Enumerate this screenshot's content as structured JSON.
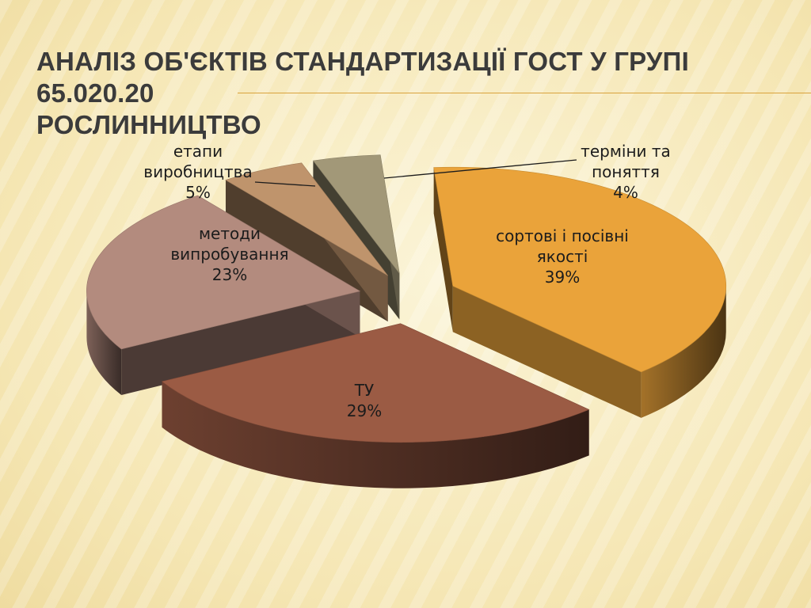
{
  "slide": {
    "title_line1": "Аналіз об'єктів стандартизації ГОСТ у групі 65.020.20",
    "title_line2": "Рослинництво"
  },
  "chart_data": {
    "type": "pie",
    "title": "",
    "legend": "none",
    "slices": [
      {
        "label": [
          "сортові і посівні",
          "якості"
        ],
        "value": 39,
        "pct_text": "39%",
        "color": "#eaa33a",
        "exploded": true
      },
      {
        "label": [
          "ТУ"
        ],
        "value": 29,
        "pct_text": "29%",
        "color": "#9b5b44",
        "exploded": true
      },
      {
        "label": [
          "методи",
          "випробування"
        ],
        "value": 23,
        "pct_text": "23%",
        "color": "#b38b7e",
        "exploded": true
      },
      {
        "label": [
          "етапи",
          "виробництва"
        ],
        "value": 5,
        "pct_text": "5%",
        "color": "#bf946c",
        "exploded": true
      },
      {
        "label": [
          "терміни та",
          "поняття"
        ],
        "value": 4,
        "pct_text": "4%",
        "color": "#a29878",
        "exploded": true
      }
    ]
  }
}
